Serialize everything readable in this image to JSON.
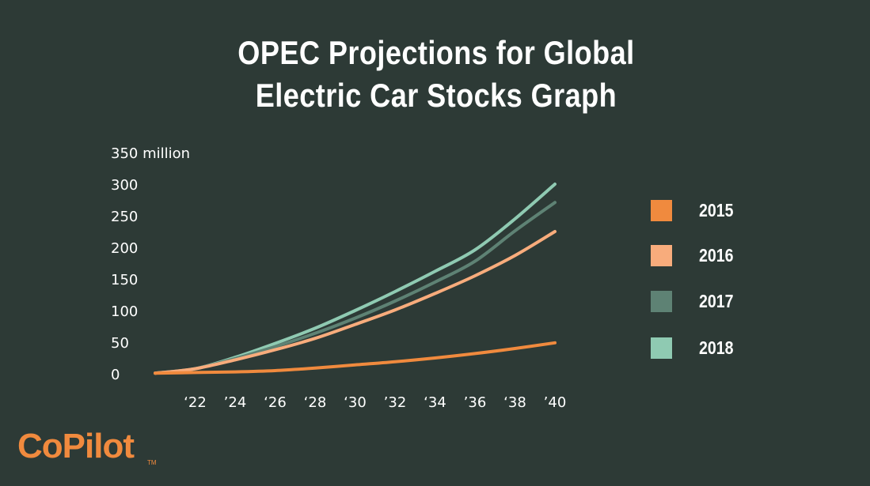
{
  "chart_data": {
    "type": "line",
    "title_lines": [
      "OPEC Projections for Global",
      "Electric Car Stocks Graph"
    ],
    "y_top_label": "350 million",
    "y_ticks": [
      "300",
      "250",
      "200",
      "150",
      "100",
      "50",
      "0"
    ],
    "y_tick_values": [
      300,
      250,
      200,
      150,
      100,
      50,
      0
    ],
    "x_ticks": [
      "‘22",
      "’24",
      "‘26",
      "‘28",
      "‘30",
      "’32",
      "‘34",
      "’36",
      "‘38",
      "’40"
    ],
    "x_tick_values": [
      2022,
      2024,
      2026,
      2028,
      2030,
      2032,
      2034,
      2036,
      2038,
      2040
    ],
    "ylim": [
      0,
      350
    ],
    "xlim": [
      2022,
      2040
    ],
    "x": [
      2020,
      2022,
      2024,
      2026,
      2028,
      2030,
      2032,
      2034,
      2036,
      2038,
      2040
    ],
    "series": [
      {
        "name": "2015",
        "color": "#f08a3e",
        "values": [
          1,
          2,
          3,
          5,
          9,
          14,
          19,
          25,
          32,
          40,
          49
        ]
      },
      {
        "name": "2016",
        "color": "#f8ac7c",
        "values": [
          1,
          8,
          22,
          38,
          56,
          78,
          101,
          127,
          155,
          187,
          225
        ]
      },
      {
        "name": "2017",
        "color": "#5e8274",
        "values": [
          1,
          8,
          24,
          43,
          64,
          88,
          115,
          145,
          178,
          226,
          271
        ]
      },
      {
        "name": "2018",
        "color": "#8fcab2",
        "values": [
          1,
          8,
          26,
          48,
          72,
          100,
          130,
          162,
          196,
          245,
          300
        ]
      }
    ],
    "grid": false,
    "legend_position": "right"
  },
  "logo": {
    "text": "CoPilot",
    "tm": "TM"
  }
}
